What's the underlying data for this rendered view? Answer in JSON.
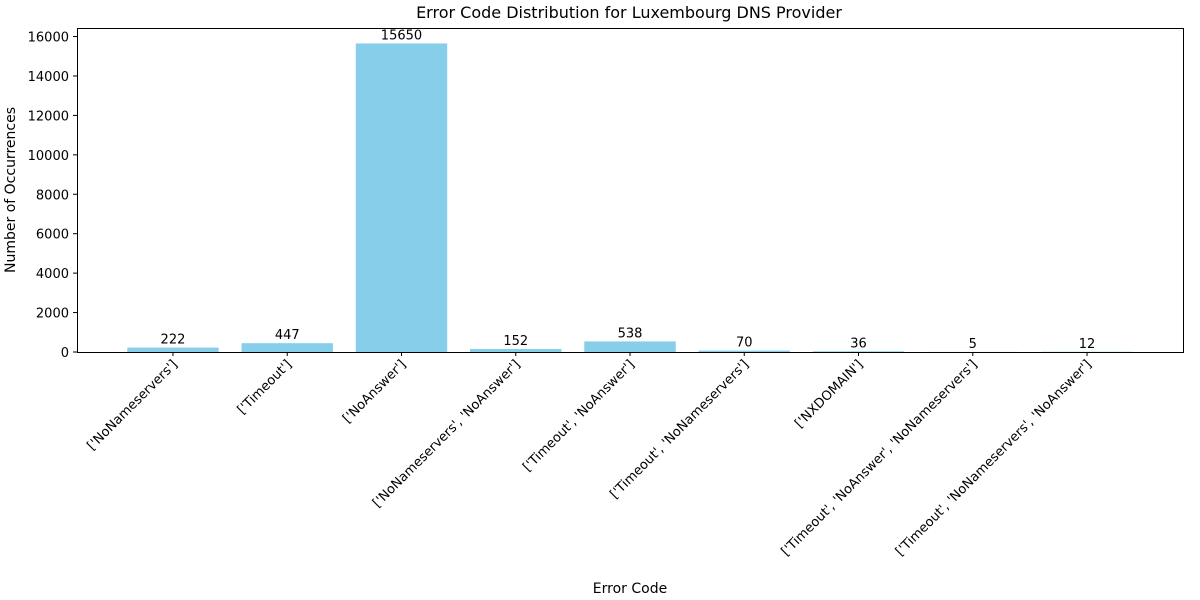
{
  "chart_data": {
    "type": "bar",
    "title": "Error Code Distribution for Luxembourg DNS Provider",
    "xlabel": "Error Code",
    "ylabel": "Number of Occurrences",
    "categories": [
      "['NoNameservers']",
      "['Timeout']",
      "['NoAnswer']",
      "['NoNameservers', 'NoAnswer']",
      "['Timeout', 'NoAnswer']",
      "['Timeout', 'NoNameservers']",
      "['NXDOMAIN']",
      "['Timeout', 'NoAnswer', 'NoNameservers']",
      "['Timeout', 'NoNameservers', 'NoAnswer']"
    ],
    "values": [
      222,
      447,
      15650,
      152,
      538,
      70,
      36,
      5,
      12
    ],
    "ylim": [
      0,
      16432.5
    ],
    "yticks": [
      0,
      2000,
      4000,
      6000,
      8000,
      10000,
      12000,
      14000,
      16000
    ],
    "bar_color": "#87ceeb",
    "grid": false,
    "data_labels": true
  }
}
